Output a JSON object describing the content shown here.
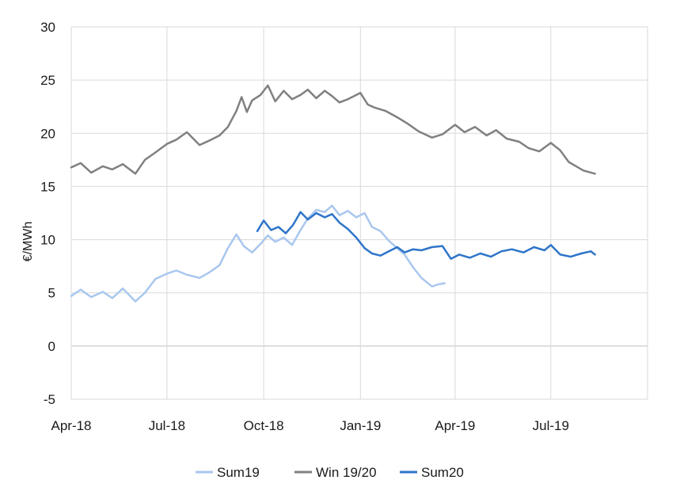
{
  "chart_data": {
    "type": "line",
    "title": "",
    "xlabel": "",
    "ylabel": "€/MWh",
    "ylim": [
      -5,
      30
    ],
    "yticks": [
      -5,
      0,
      5,
      10,
      15,
      20,
      25,
      30
    ],
    "xlim": [
      "2018-04-01",
      "2019-10-01"
    ],
    "xticks": [
      {
        "date": "2018-04-01",
        "label": "Apr-18"
      },
      {
        "date": "2018-07-01",
        "label": "Jul-18"
      },
      {
        "date": "2018-10-01",
        "label": "Oct-18"
      },
      {
        "date": "2019-01-01",
        "label": "Jan-19"
      },
      {
        "date": "2019-04-01",
        "label": "Apr-19"
      },
      {
        "date": "2019-07-01",
        "label": "Jul-19"
      }
    ],
    "grid": true,
    "legend_position": "bottom",
    "series": [
      {
        "name": "Sum19",
        "color": "#a9c7ee",
        "points": [
          [
            "2018-04-01",
            4.7
          ],
          [
            "2018-04-10",
            5.3
          ],
          [
            "2018-04-20",
            4.6
          ],
          [
            "2018-05-01",
            5.1
          ],
          [
            "2018-05-10",
            4.5
          ],
          [
            "2018-05-20",
            5.4
          ],
          [
            "2018-06-01",
            4.2
          ],
          [
            "2018-06-10",
            5.0
          ],
          [
            "2018-06-20",
            6.3
          ],
          [
            "2018-07-01",
            6.8
          ],
          [
            "2018-07-10",
            7.1
          ],
          [
            "2018-07-20",
            6.7
          ],
          [
            "2018-08-01",
            6.4
          ],
          [
            "2018-08-10",
            6.9
          ],
          [
            "2018-08-20",
            7.6
          ],
          [
            "2018-08-28",
            9.2
          ],
          [
            "2018-09-05",
            10.5
          ],
          [
            "2018-09-12",
            9.4
          ],
          [
            "2018-09-20",
            8.8
          ],
          [
            "2018-09-28",
            9.6
          ],
          [
            "2018-10-05",
            10.4
          ],
          [
            "2018-10-12",
            9.8
          ],
          [
            "2018-10-20",
            10.2
          ],
          [
            "2018-10-28",
            9.5
          ],
          [
            "2018-11-05",
            10.9
          ],
          [
            "2018-11-12",
            12.0
          ],
          [
            "2018-11-20",
            12.8
          ],
          [
            "2018-11-28",
            12.6
          ],
          [
            "2018-12-05",
            13.2
          ],
          [
            "2018-12-12",
            12.3
          ],
          [
            "2018-12-20",
            12.7
          ],
          [
            "2018-12-28",
            12.1
          ],
          [
            "2019-01-05",
            12.5
          ],
          [
            "2019-01-12",
            11.2
          ],
          [
            "2019-01-20",
            10.8
          ],
          [
            "2019-01-28",
            9.9
          ],
          [
            "2019-02-05",
            9.2
          ],
          [
            "2019-02-12",
            8.6
          ],
          [
            "2019-02-20",
            7.4
          ],
          [
            "2019-02-28",
            6.4
          ],
          [
            "2019-03-05",
            6.0
          ],
          [
            "2019-03-10",
            5.6
          ],
          [
            "2019-03-16",
            5.8
          ],
          [
            "2019-03-22",
            5.9
          ]
        ]
      },
      {
        "name": "Win 19/20",
        "color": "#808080",
        "points": [
          [
            "2018-04-01",
            16.8
          ],
          [
            "2018-04-10",
            17.2
          ],
          [
            "2018-04-20",
            16.3
          ],
          [
            "2018-05-01",
            16.9
          ],
          [
            "2018-05-10",
            16.6
          ],
          [
            "2018-05-20",
            17.1
          ],
          [
            "2018-06-01",
            16.2
          ],
          [
            "2018-06-10",
            17.5
          ],
          [
            "2018-06-20",
            18.2
          ],
          [
            "2018-07-01",
            19.0
          ],
          [
            "2018-07-10",
            19.4
          ],
          [
            "2018-07-20",
            20.1
          ],
          [
            "2018-08-01",
            18.9
          ],
          [
            "2018-08-10",
            19.3
          ],
          [
            "2018-08-20",
            19.8
          ],
          [
            "2018-08-28",
            20.6
          ],
          [
            "2018-09-05",
            22.1
          ],
          [
            "2018-09-10",
            23.4
          ],
          [
            "2018-09-15",
            22.0
          ],
          [
            "2018-09-20",
            23.1
          ],
          [
            "2018-09-28",
            23.6
          ],
          [
            "2018-10-05",
            24.5
          ],
          [
            "2018-10-12",
            23.0
          ],
          [
            "2018-10-20",
            24.0
          ],
          [
            "2018-10-28",
            23.2
          ],
          [
            "2018-11-05",
            23.6
          ],
          [
            "2018-11-12",
            24.1
          ],
          [
            "2018-11-20",
            23.3
          ],
          [
            "2018-11-28",
            24.0
          ],
          [
            "2018-12-05",
            23.5
          ],
          [
            "2018-12-12",
            22.9
          ],
          [
            "2018-12-20",
            23.2
          ],
          [
            "2019-01-01",
            23.8
          ],
          [
            "2019-01-08",
            22.7
          ],
          [
            "2019-01-15",
            22.4
          ],
          [
            "2019-01-25",
            22.1
          ],
          [
            "2019-02-05",
            21.5
          ],
          [
            "2019-02-15",
            20.9
          ],
          [
            "2019-02-25",
            20.2
          ],
          [
            "2019-03-10",
            19.6
          ],
          [
            "2019-03-20",
            19.9
          ],
          [
            "2019-04-01",
            20.8
          ],
          [
            "2019-04-10",
            20.1
          ],
          [
            "2019-04-20",
            20.6
          ],
          [
            "2019-05-01",
            19.8
          ],
          [
            "2019-05-10",
            20.3
          ],
          [
            "2019-05-20",
            19.5
          ],
          [
            "2019-06-01",
            19.2
          ],
          [
            "2019-06-10",
            18.6
          ],
          [
            "2019-06-20",
            18.3
          ],
          [
            "2019-07-01",
            19.1
          ],
          [
            "2019-07-10",
            18.4
          ],
          [
            "2019-07-18",
            17.3
          ],
          [
            "2019-07-25",
            16.9
          ],
          [
            "2019-08-01",
            16.5
          ],
          [
            "2019-08-12",
            16.2
          ]
        ]
      },
      {
        "name": "Sum20",
        "color": "#2e75c9",
        "points": [
          [
            "2018-09-25",
            10.8
          ],
          [
            "2018-10-01",
            11.8
          ],
          [
            "2018-10-08",
            10.9
          ],
          [
            "2018-10-15",
            11.2
          ],
          [
            "2018-10-22",
            10.6
          ],
          [
            "2018-10-29",
            11.4
          ],
          [
            "2018-11-05",
            12.6
          ],
          [
            "2018-11-12",
            11.9
          ],
          [
            "2018-11-20",
            12.5
          ],
          [
            "2018-11-28",
            12.1
          ],
          [
            "2018-12-05",
            12.4
          ],
          [
            "2018-12-12",
            11.6
          ],
          [
            "2018-12-20",
            11.0
          ],
          [
            "2018-12-28",
            10.2
          ],
          [
            "2019-01-05",
            9.2
          ],
          [
            "2019-01-12",
            8.7
          ],
          [
            "2019-01-20",
            8.5
          ],
          [
            "2019-01-28",
            8.9
          ],
          [
            "2019-02-05",
            9.3
          ],
          [
            "2019-02-12",
            8.8
          ],
          [
            "2019-02-20",
            9.1
          ],
          [
            "2019-02-28",
            9.0
          ],
          [
            "2019-03-10",
            9.3
          ],
          [
            "2019-03-20",
            9.4
          ],
          [
            "2019-03-28",
            8.2
          ],
          [
            "2019-04-05",
            8.6
          ],
          [
            "2019-04-15",
            8.3
          ],
          [
            "2019-04-25",
            8.7
          ],
          [
            "2019-05-05",
            8.4
          ],
          [
            "2019-05-15",
            8.9
          ],
          [
            "2019-05-25",
            9.1
          ],
          [
            "2019-06-05",
            8.8
          ],
          [
            "2019-06-15",
            9.3
          ],
          [
            "2019-06-25",
            9.0
          ],
          [
            "2019-07-01",
            9.5
          ],
          [
            "2019-07-10",
            8.6
          ],
          [
            "2019-07-20",
            8.4
          ],
          [
            "2019-07-30",
            8.7
          ],
          [
            "2019-08-08",
            8.9
          ],
          [
            "2019-08-12",
            8.6
          ]
        ]
      }
    ]
  }
}
